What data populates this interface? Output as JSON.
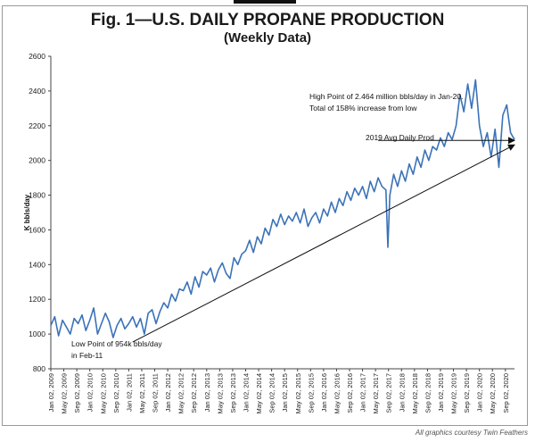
{
  "header": {
    "title": "Fig. 1—U.S. DAILY PROPANE PRODUCTION",
    "subtitle": "(Weekly Data)"
  },
  "credit": "All graphics courtesy Twin Feathers",
  "colors": {
    "series": "#3b72b8",
    "axis": "#444444",
    "grid": "#d9d9d9"
  },
  "chart_data": {
    "type": "line",
    "title": "Fig. 1—U.S. DAILY PROPANE PRODUCTION",
    "subtitle": "(Weekly Data)",
    "xlabel": "",
    "ylabel": "K bbls/day",
    "ylim": [
      800,
      2600
    ],
    "yticks": [
      800,
      1000,
      1200,
      1400,
      1600,
      1800,
      2000,
      2200,
      2400,
      2600
    ],
    "grid": false,
    "x_tick_labels": [
      "Jan 02, 2009",
      "May 02, 2009",
      "Sep 02, 2009",
      "Jan 02, 2010",
      "May 02, 2010",
      "Sep 02, 2010",
      "Jan 02, 2011",
      "May 02, 2011",
      "Sep 02, 2011",
      "Jan 02, 2012",
      "May 02, 2012",
      "Sep 02, 2012",
      "Jan 02, 2013",
      "May 02, 2013",
      "Sep 02, 2013",
      "Jan 02, 2014",
      "May 02, 2014",
      "Sep 02, 2014",
      "Jan 02, 2015",
      "May 02, 2015",
      "Sep 02, 2015",
      "Jan 02, 2016",
      "May 02, 2016",
      "Sep 02, 2016",
      "Jan 02, 2017",
      "May 02, 2017",
      "Sep 02, 2017",
      "Jan 02, 2018",
      "May 02, 2018",
      "Sep 02, 2018",
      "Jan 02, 2019",
      "May 02, 2019",
      "Sep 02, 2019",
      "Jan 02, 2020",
      "May 02, 2020",
      "Sep 02, 2020"
    ],
    "series": [
      {
        "name": "U.S. daily propane production (K bbls/day)",
        "x": [
          2009.0,
          2009.1,
          2009.2,
          2009.3,
          2009.4,
          2009.5,
          2009.6,
          2009.7,
          2009.8,
          2009.9,
          2010.0,
          2010.1,
          2010.2,
          2010.3,
          2010.4,
          2010.5,
          2010.6,
          2010.7,
          2010.8,
          2010.9,
          2011.0,
          2011.1,
          2011.2,
          2011.3,
          2011.4,
          2011.5,
          2011.6,
          2011.7,
          2011.8,
          2011.9,
          2012.0,
          2012.1,
          2012.2,
          2012.3,
          2012.4,
          2012.5,
          2012.6,
          2012.7,
          2012.8,
          2012.9,
          2013.0,
          2013.1,
          2013.2,
          2013.3,
          2013.4,
          2013.5,
          2013.6,
          2013.7,
          2013.8,
          2013.9,
          2014.0,
          2014.1,
          2014.2,
          2014.3,
          2014.4,
          2014.5,
          2014.6,
          2014.7,
          2014.8,
          2014.9,
          2015.0,
          2015.1,
          2015.2,
          2015.3,
          2015.4,
          2015.5,
          2015.6,
          2015.7,
          2015.8,
          2015.9,
          2016.0,
          2016.1,
          2016.2,
          2016.3,
          2016.4,
          2016.5,
          2016.6,
          2016.7,
          2016.8,
          2016.9,
          2017.0,
          2017.1,
          2017.2,
          2017.3,
          2017.4,
          2017.5,
          2017.6,
          2017.65,
          2017.7,
          2017.8,
          2017.9,
          2018.0,
          2018.1,
          2018.2,
          2018.3,
          2018.4,
          2018.5,
          2018.6,
          2018.7,
          2018.8,
          2018.9,
          2019.0,
          2019.1,
          2019.2,
          2019.3,
          2019.4,
          2019.5,
          2019.6,
          2019.7,
          2019.8,
          2019.9,
          2020.0,
          2020.1,
          2020.2,
          2020.3,
          2020.4,
          2020.5,
          2020.6,
          2020.7,
          2020.8,
          2020.9
        ],
        "y": [
          1050,
          1100,
          990,
          1080,
          1040,
          1000,
          1090,
          1060,
          1110,
          1020,
          1080,
          1150,
          1000,
          1060,
          1120,
          1070,
          980,
          1050,
          1090,
          1030,
          1060,
          1100,
          1040,
          1090,
          1000,
          1120,
          1140,
          1060,
          1130,
          1180,
          1150,
          1230,
          1190,
          1260,
          1250,
          1300,
          1230,
          1330,
          1270,
          1360,
          1340,
          1380,
          1300,
          1370,
          1410,
          1350,
          1320,
          1440,
          1400,
          1460,
          1480,
          1540,
          1470,
          1560,
          1520,
          1610,
          1570,
          1660,
          1620,
          1690,
          1630,
          1680,
          1650,
          1700,
          1640,
          1720,
          1620,
          1670,
          1700,
          1640,
          1720,
          1680,
          1760,
          1700,
          1780,
          1740,
          1820,
          1770,
          1840,
          1800,
          1850,
          1780,
          1880,
          1820,
          1900,
          1850,
          1830,
          1500,
          1800,
          1920,
          1850,
          1940,
          1880,
          1980,
          1920,
          2020,
          1960,
          2060,
          2000,
          2080,
          2060,
          2130,
          2080,
          2160,
          2120,
          2200,
          2380,
          2280,
          2440,
          2300,
          2464,
          2200,
          2080,
          2160,
          2020,
          2180,
          1960,
          2260,
          2320,
          2160,
          2120
        ]
      }
    ],
    "annotations": [
      "High Point of 2.464 million bbls/day in Jan-20.",
      "Total of 158% increase from low",
      "2019 Avg Daily Prod",
      "Low Point of 954k bbls/day",
      "in Feb-11"
    ],
    "trend_arrow": {
      "from": [
        2011.1,
        954
      ],
      "to": [
        2020.9,
        2090
      ]
    },
    "avg_2019_arrow": {
      "from": [
        2017.4,
        2115
      ],
      "to": [
        2020.9,
        2115
      ]
    }
  }
}
